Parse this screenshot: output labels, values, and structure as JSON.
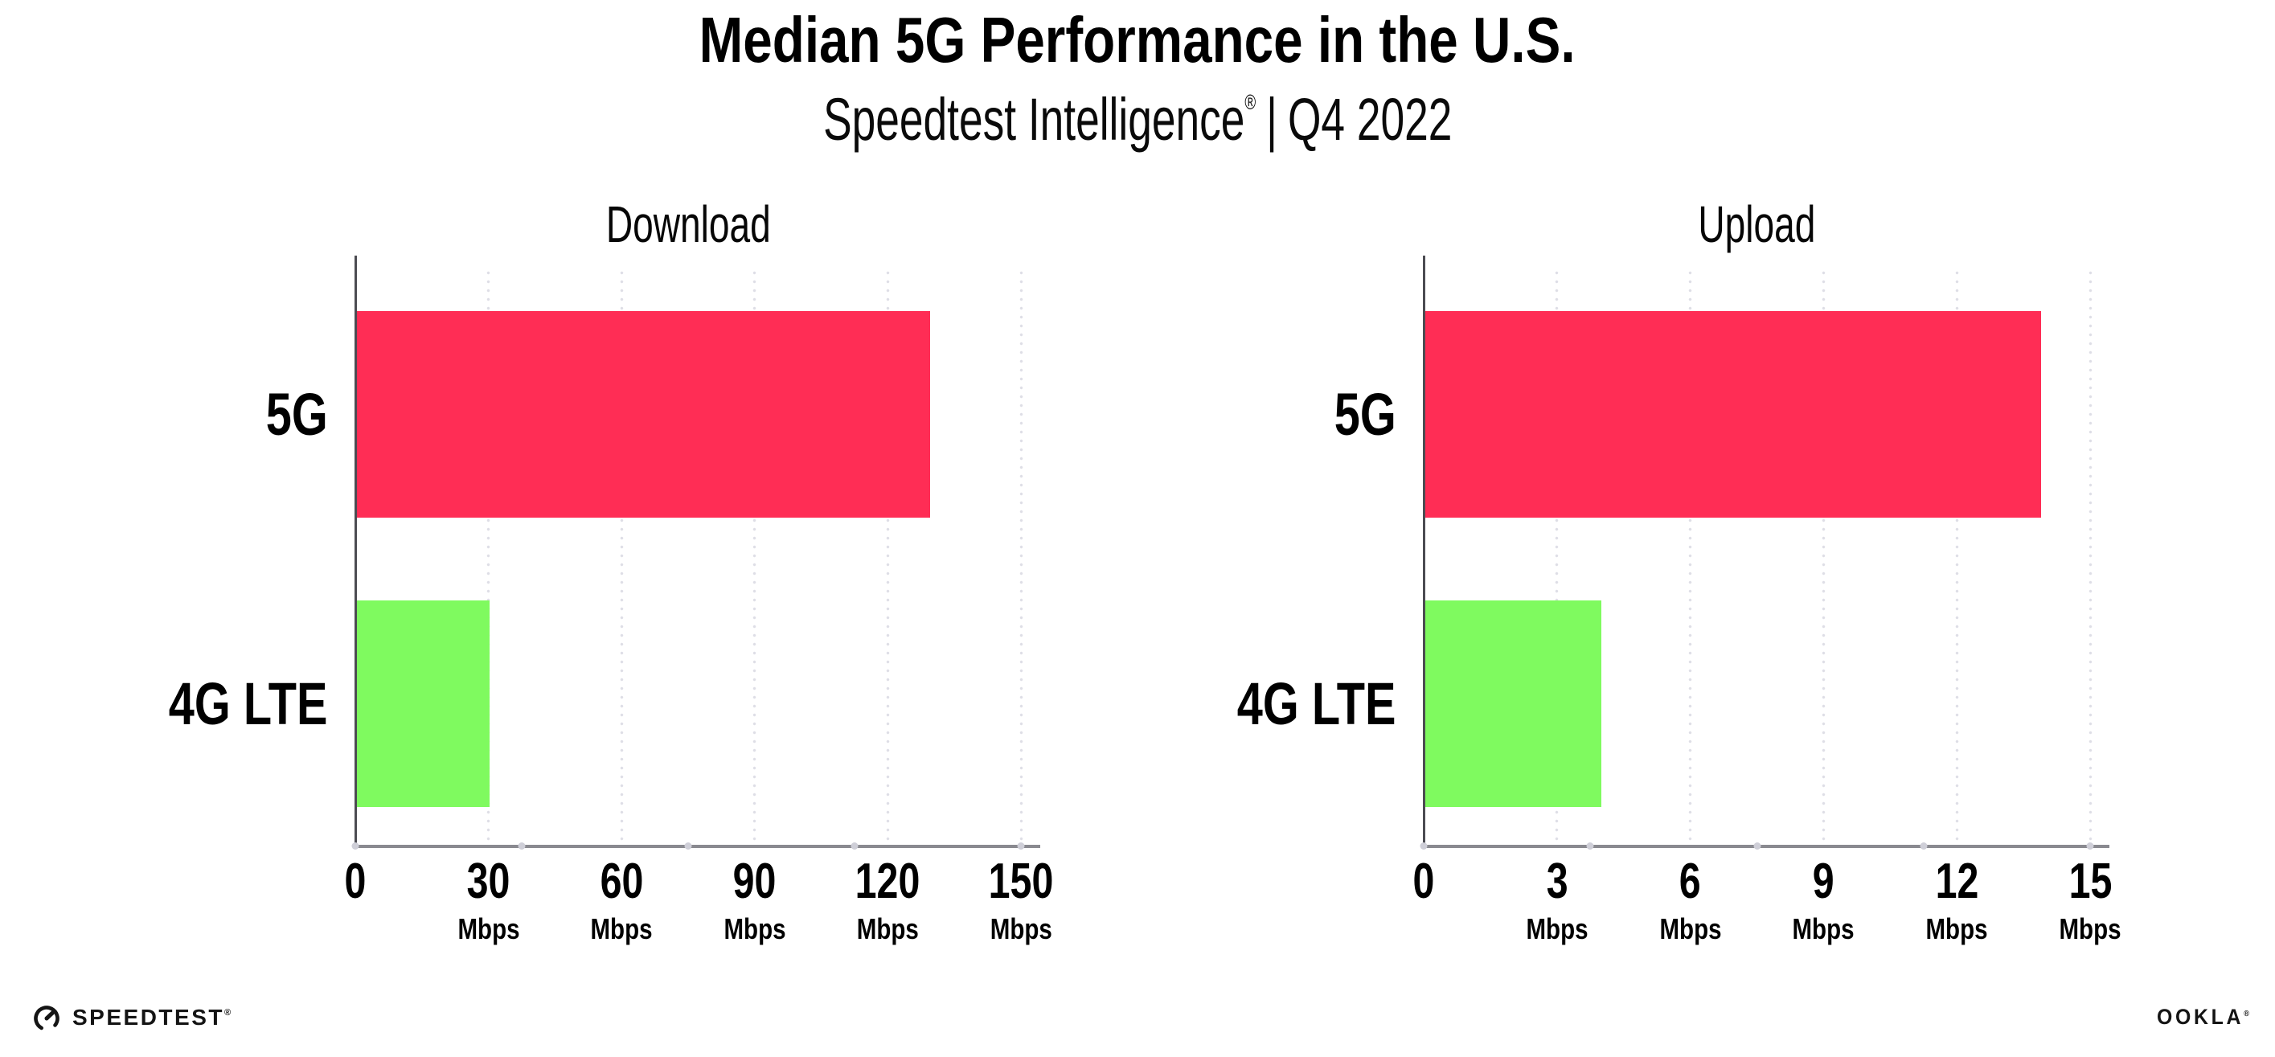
{
  "header": {
    "title": "Median 5G Performance in the U.S.",
    "subtitle_brand": "Speedtest Intelligence",
    "subtitle_reg": "®",
    "subtitle_divider": "|",
    "subtitle_period": "Q4 2022"
  },
  "chart_data": [
    {
      "type": "bar",
      "orientation": "horizontal",
      "title": "Download",
      "categories": [
        "5G",
        "4G LTE"
      ],
      "values": [
        129.6,
        30.3
      ],
      "unit": "Mbps",
      "xlim": [
        0,
        150
      ],
      "ticks": [
        0,
        30,
        60,
        90,
        120,
        150
      ],
      "grid": "dotted-vertical",
      "bar_colors": [
        "#FF2D55",
        "#7FFA5F"
      ]
    },
    {
      "type": "bar",
      "orientation": "horizontal",
      "title": "Upload",
      "categories": [
        "5G",
        "4G LTE"
      ],
      "values": [
        13.9,
        4.0
      ],
      "unit": "Mbps",
      "xlim": [
        0,
        15
      ],
      "ticks": [
        0,
        3,
        6,
        9,
        12,
        15
      ],
      "grid": "dotted-vertical",
      "bar_colors": [
        "#FF2D55",
        "#7FFA5F"
      ]
    }
  ],
  "footer": {
    "speedtest_wordmark": "SPEEDTEST",
    "speedtest_reg": "®",
    "ookla_wordmark": "OOKLA",
    "ookla_reg": "®"
  },
  "colors": {
    "bar_5g": "#FF2D55",
    "bar_4g_lte": "#7FFA5F",
    "x_axis_line": "#8A8A90",
    "y_axis_line": "#4C4C52",
    "gridline_dot": "#DEDEE6",
    "axis_tick_dot": "#CFCFD8",
    "text": "#000000",
    "background": "#FFFFFF"
  }
}
